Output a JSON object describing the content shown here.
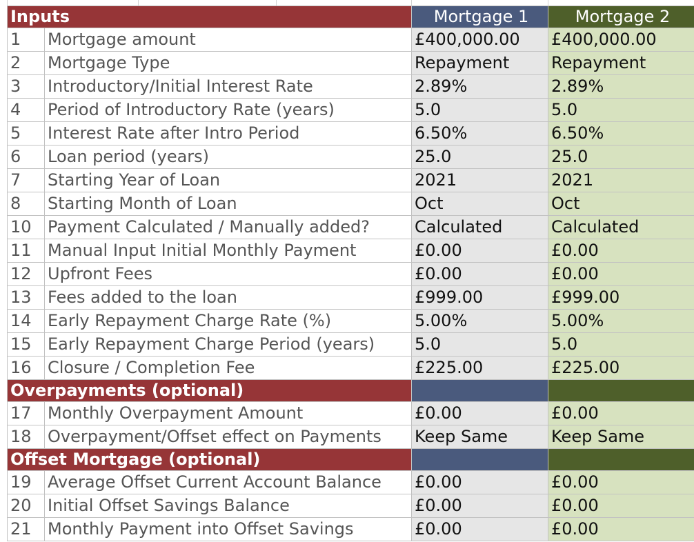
{
  "header": {
    "section": "Inputs",
    "col_mortgage1": "Mortgage 1",
    "col_mortgage2": "Mortgage 2"
  },
  "inputs": [
    {
      "num": "1",
      "label": "Mortgage amount",
      "m1": "£400,000.00",
      "m2": "£400,000.00"
    },
    {
      "num": "2",
      "label": "Mortgage Type",
      "m1": "Repayment",
      "m2": "Repayment"
    },
    {
      "num": "3",
      "label": "Introductory/Initial Interest Rate",
      "m1": "2.89%",
      "m2": "2.89%"
    },
    {
      "num": "4",
      "label": "Period of Introductory Rate (years)",
      "m1": "5.0",
      "m2": "5.0"
    },
    {
      "num": "5",
      "label": "Interest Rate after Intro Period",
      "m1": "6.50%",
      "m2": "6.50%"
    },
    {
      "num": "6",
      "label": "Loan period (years)",
      "m1": "25.0",
      "m2": "25.0"
    },
    {
      "num": "7",
      "label": "Starting Year of Loan",
      "m1": "2021",
      "m2": "2021"
    },
    {
      "num": "8",
      "label": "Starting Month of Loan",
      "m1": "Oct",
      "m2": "Oct"
    },
    {
      "num": "10",
      "label": "Payment Calculated / Manually added?",
      "m1": "Calculated",
      "m2": "Calculated"
    },
    {
      "num": "11",
      "label": "Manual Input Initial Monthly Payment",
      "m1": "£0.00",
      "m2": "£0.00"
    },
    {
      "num": "12",
      "label": "Upfront Fees",
      "m1": "£0.00",
      "m2": "£0.00"
    },
    {
      "num": "13",
      "label": "Fees added to the loan",
      "m1": "£999.00",
      "m2": "£999.00"
    },
    {
      "num": "14",
      "label": "Early Repayment Charge Rate (%)",
      "m1": "5.00%",
      "m2": "5.00%"
    },
    {
      "num": "15",
      "label": "Early Repayment Charge Period (years)",
      "m1": "5.0",
      "m2": "5.0"
    },
    {
      "num": "16",
      "label": "Closure / Completion Fee",
      "m1": "£225.00",
      "m2": "£225.00"
    }
  ],
  "overpayments": {
    "section": "Overpayments (optional)",
    "rows": [
      {
        "num": "17",
        "label": "Monthly Overpayment Amount",
        "m1": "£0.00",
        "m2": "£0.00"
      },
      {
        "num": "18",
        "label": "Overpayment/Offset effect on Payments",
        "m1": "Keep Same",
        "m2": "Keep Same"
      }
    ]
  },
  "offset": {
    "section": "Offset Mortgage (optional)",
    "rows": [
      {
        "num": "19",
        "label": "Average Offset Current Account Balance",
        "m1": "£0.00",
        "m2": "£0.00"
      },
      {
        "num": "20",
        "label": "Initial Offset Savings Balance",
        "m1": "£0.00",
        "m2": "£0.00"
      },
      {
        "num": "21",
        "label": "Monthly Payment into Offset Savings",
        "m1": "£0.00",
        "m2": "£0.00"
      }
    ]
  },
  "colors": {
    "section_red": "#963537",
    "mortgage1_blue": "#4a5a7d",
    "mortgage2_green": "#4e5f2a",
    "mortgage1_cell": "#e6e6e6",
    "mortgage2_cell": "#d7e2bf"
  }
}
